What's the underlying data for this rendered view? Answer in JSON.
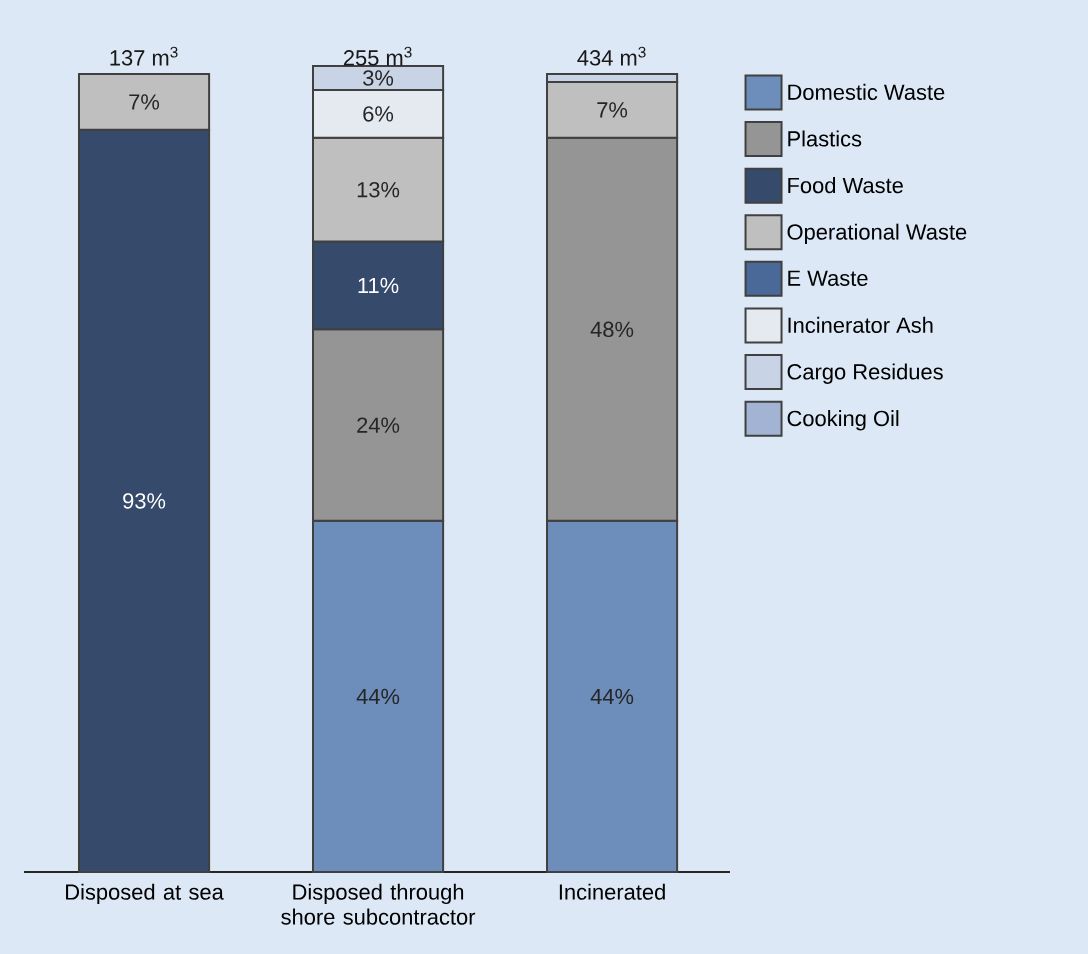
{
  "chart_data": {
    "type": "bar",
    "stacked": true,
    "categories": [
      "Disposed at sea",
      "Disposed through shore subcontractor",
      "Incinerated"
    ],
    "totals": [
      "137 m$^{3}$",
      "255 m$^{3}$",
      "434 m$^{3}$"
    ],
    "legend": "right",
    "series": [
      {
        "name": "Domestic Waste",
        "color": "#6d8dbb",
        "values": [
          null,
          44,
          44
        ],
        "value_labels": [
          null,
          "44%",
          "44%"
        ]
      },
      {
        "name": "Plastics",
        "color": "#959595",
        "values": [
          null,
          24,
          48
        ],
        "value_labels": [
          null,
          "24%",
          "48%"
        ]
      },
      {
        "name": "Food Waste",
        "color": "#364b6b",
        "values": [
          93,
          11,
          null
        ],
        "value_labels": [
          "93%",
          "11%",
          null
        ]
      },
      {
        "name": "Operational Waste",
        "color": "#bfbfbf",
        "values": [
          7,
          13,
          7
        ],
        "value_labels": [
          "7%",
          "13%",
          "7%"
        ]
      },
      {
        "name": "E Waste",
        "color": "#4a6898",
        "values": [
          null,
          null,
          null
        ],
        "value_labels": [
          null,
          null,
          null
        ]
      },
      {
        "name": "Incinerator Ash",
        "color": "#e5e9f0",
        "values": [
          null,
          6,
          null
        ],
        "value_labels": [
          null,
          "6%",
          null
        ]
      },
      {
        "name": "Cargo Residues",
        "color": "#c9d3e6",
        "values": [
          null,
          3,
          1
        ],
        "value_labels": [
          null,
          "3%",
          null
        ]
      },
      {
        "name": "Cooking Oil",
        "color": "#a2b3d3",
        "values": [
          null,
          null,
          null
        ],
        "value_labels": [
          null,
          null,
          null
        ]
      }
    ]
  }
}
